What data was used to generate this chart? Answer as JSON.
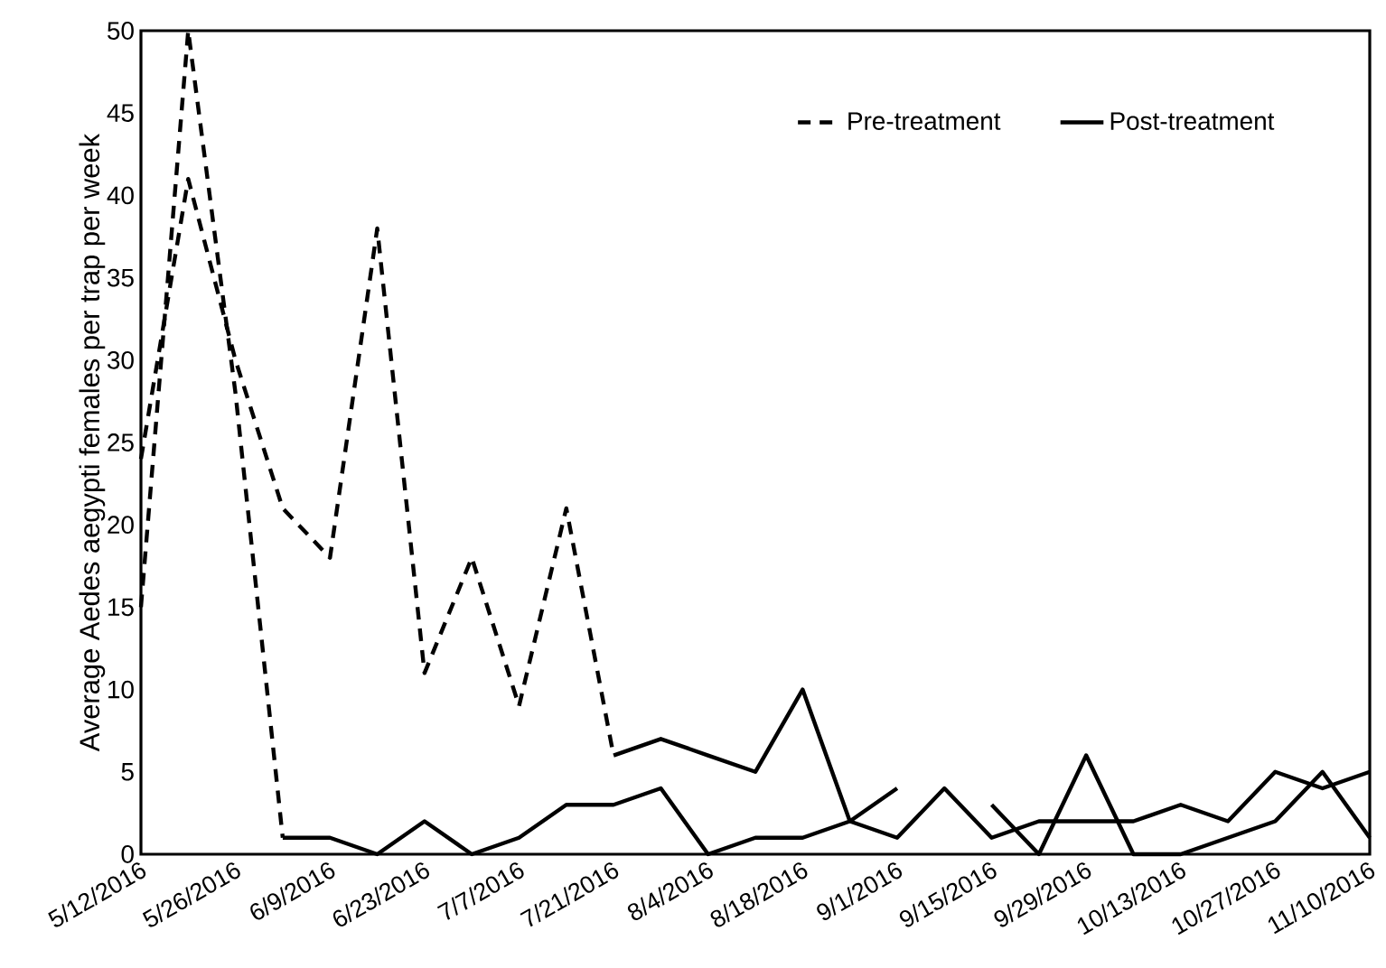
{
  "chart_data": {
    "type": "line",
    "categories": [
      "5/12/2016",
      null,
      "5/26/2016",
      null,
      "6/9/2016",
      null,
      "6/23/2016",
      null,
      "7/7/2016",
      null,
      "7/21/2016",
      null,
      "8/4/2016",
      null,
      "8/18/2016",
      null,
      "9/1/2016",
      null,
      "9/15/2016",
      null,
      "9/29/2016",
      null,
      "10/13/2016",
      null,
      "10/27/2016",
      null,
      "11/10/2016"
    ],
    "ylabel": "Average Aedes aegypti females per trap per week",
    "ylim": [
      0,
      50
    ],
    "yticks": [
      0,
      5,
      10,
      15,
      20,
      25,
      30,
      35,
      40,
      45,
      50
    ],
    "legend": "top right",
    "series": [
      {
        "name": "Pre-treatment",
        "color": "#000000",
        "line_style": "dashed",
        "values": [
          15,
          50,
          28,
          1,
          null,
          null,
          null,
          null,
          null,
          null,
          null,
          null,
          null,
          null,
          null,
          null,
          null,
          null,
          null,
          null,
          null,
          null,
          null,
          null,
          null,
          null,
          null
        ]
      },
      {
        "name": "Post-treatment",
        "color": "#000000",
        "line_style": "solid",
        "values": [
          null,
          null,
          null,
          1,
          1,
          0,
          2,
          0,
          1,
          3,
          3,
          4,
          0,
          1,
          1,
          2,
          4,
          null,
          3,
          0,
          6,
          0,
          0,
          1,
          2,
          5,
          1
        ]
      },
      {
        "color": "#000000",
        "line_style": "dashed",
        "values": [
          24,
          41,
          30,
          21,
          18,
          38,
          11,
          18,
          9,
          21,
          6,
          null,
          null,
          null,
          null,
          null,
          null,
          null,
          null,
          null,
          null,
          null,
          null,
          null,
          null,
          null,
          null
        ]
      },
      {
        "color": "#000000",
        "line_style": "solid",
        "values": [
          null,
          null,
          null,
          null,
          null,
          null,
          null,
          null,
          null,
          null,
          6,
          7,
          6,
          5,
          10,
          2,
          1,
          4,
          1,
          2,
          2,
          2,
          3,
          2,
          5,
          4,
          5
        ]
      }
    ]
  }
}
